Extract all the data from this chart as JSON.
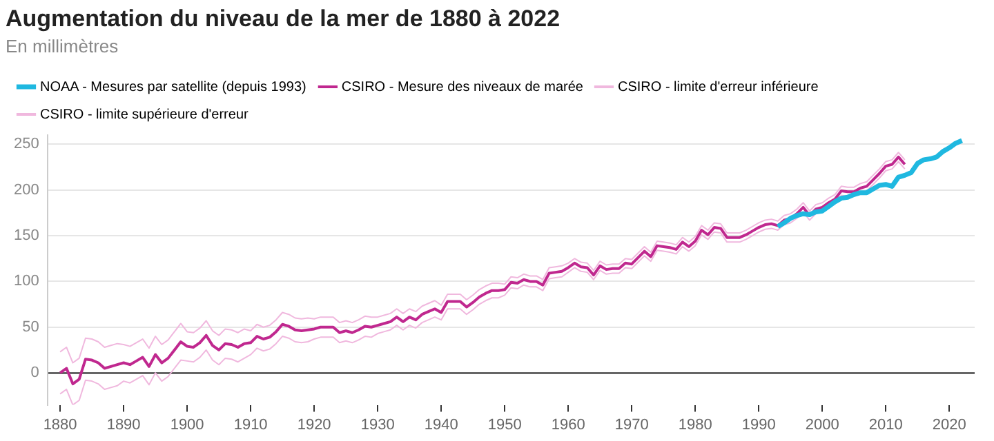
{
  "chart_data": {
    "type": "line",
    "title": "Augmentation du niveau de la mer de 1880 à 2022",
    "subtitle": "En millimètres",
    "x": [
      1880,
      1881,
      1882,
      1883,
      1884,
      1885,
      1886,
      1887,
      1888,
      1889,
      1890,
      1891,
      1892,
      1893,
      1894,
      1895,
      1896,
      1897,
      1898,
      1899,
      1900,
      1901,
      1902,
      1903,
      1904,
      1905,
      1906,
      1907,
      1908,
      1909,
      1910,
      1911,
      1912,
      1913,
      1914,
      1915,
      1916,
      1917,
      1918,
      1919,
      1920,
      1921,
      1922,
      1923,
      1924,
      1925,
      1926,
      1927,
      1928,
      1929,
      1930,
      1931,
      1932,
      1933,
      1934,
      1935,
      1936,
      1937,
      1938,
      1939,
      1940,
      1941,
      1942,
      1943,
      1944,
      1945,
      1946,
      1947,
      1948,
      1949,
      1950,
      1951,
      1952,
      1953,
      1954,
      1955,
      1956,
      1957,
      1958,
      1959,
      1960,
      1961,
      1962,
      1963,
      1964,
      1965,
      1966,
      1967,
      1968,
      1969,
      1970,
      1971,
      1972,
      1973,
      1974,
      1975,
      1976,
      1977,
      1978,
      1979,
      1980,
      1981,
      1982,
      1983,
      1984,
      1985,
      1986,
      1987,
      1988,
      1989,
      1990,
      1991,
      1992,
      1993,
      1994,
      1995,
      1996,
      1997,
      1998,
      1999,
      2000,
      2001,
      2002,
      2003,
      2004,
      2005,
      2006,
      2007,
      2008,
      2009,
      2010,
      2011,
      2012,
      2013
    ],
    "series": [
      {
        "name": "NOAA - Mesures par satellite (depuis 1993)",
        "color": "#1fb8e0",
        "x": [
          1993,
          1994,
          1995,
          1996,
          1997,
          1998,
          1999,
          2000,
          2001,
          2002,
          2003,
          2004,
          2005,
          2006,
          2007,
          2008,
          2009,
          2010,
          2011,
          2012,
          2013,
          2014,
          2015,
          2016,
          2017,
          2018,
          2019,
          2020,
          2021,
          2022
        ],
        "values": [
          160,
          164,
          169,
          172,
          174,
          173,
          176,
          177,
          182,
          187,
          191,
          192,
          195,
          197,
          197,
          201,
          205,
          206,
          204,
          214,
          216,
          219,
          229,
          233,
          234,
          236,
          242,
          246,
          251,
          254
        ]
      },
      {
        "name": "CSIRO - Mesure des niveaux de marée",
        "color": "#c0288f",
        "values": [
          0,
          5,
          -12,
          -7,
          15,
          14,
          11,
          5,
          7,
          9,
          11,
          9,
          13,
          17,
          7,
          20,
          11,
          16,
          25,
          34,
          29,
          28,
          33,
          41,
          30,
          25,
          32,
          31,
          28,
          32,
          33,
          40,
          37,
          39,
          45,
          53,
          51,
          47,
          46,
          47,
          48,
          50,
          50,
          50,
          44,
          46,
          44,
          47,
          51,
          50,
          52,
          54,
          56,
          61,
          56,
          61,
          58,
          64,
          67,
          70,
          66,
          78,
          78,
          78,
          72,
          77,
          83,
          87,
          90,
          90,
          91,
          99,
          98,
          102,
          100,
          100,
          96,
          109,
          110,
          111,
          115,
          120,
          116,
          115,
          107,
          117,
          113,
          114,
          114,
          120,
          119,
          126,
          133,
          127,
          139,
          138,
          137,
          135,
          143,
          138,
          144,
          156,
          151,
          159,
          158,
          148,
          148,
          148,
          151,
          155,
          159,
          162,
          163,
          161,
          167,
          169,
          174,
          181,
          172,
          179,
          181,
          186,
          190,
          199,
          198,
          198,
          202,
          204,
          211,
          218,
          226,
          228,
          236,
          228
        ]
      },
      {
        "name": "CSIRO - limite d'erreur inférieure",
        "color": "#f0b8de",
        "values": [
          -23,
          -18,
          -35,
          -30,
          -8,
          -9,
          -12,
          -18,
          -16,
          -14,
          -9,
          -11,
          -7,
          -3,
          -13,
          0,
          -9,
          -4,
          5,
          14,
          13,
          12,
          17,
          25,
          14,
          9,
          16,
          15,
          12,
          16,
          20,
          27,
          24,
          26,
          32,
          40,
          38,
          34,
          33,
          34,
          37,
          39,
          39,
          39,
          33,
          35,
          33,
          36,
          40,
          39,
          43,
          45,
          47,
          52,
          47,
          52,
          49,
          55,
          58,
          61,
          58,
          70,
          70,
          70,
          64,
          69,
          75,
          79,
          82,
          82,
          85,
          93,
          92,
          96,
          94,
          94,
          90,
          103,
          104,
          105,
          110,
          115,
          111,
          110,
          102,
          112,
          108,
          109,
          109,
          115,
          114,
          121,
          128,
          122,
          134,
          133,
          132,
          130,
          138,
          133,
          139,
          151,
          146,
          154,
          153,
          143,
          143,
          143,
          146,
          150,
          154,
          157,
          158,
          156,
          162,
          164,
          169,
          176,
          167,
          174,
          176,
          181,
          185,
          194,
          193,
          193,
          197,
          199,
          206,
          213,
          221,
          223,
          231,
          223
        ]
      },
      {
        "name": "CSIRO - limite supérieure d'erreur",
        "color": "#f0b8de",
        "values": [
          23,
          28,
          11,
          16,
          38,
          37,
          34,
          28,
          30,
          32,
          31,
          29,
          33,
          37,
          27,
          40,
          31,
          36,
          45,
          54,
          45,
          44,
          49,
          57,
          46,
          41,
          48,
          47,
          44,
          48,
          46,
          53,
          50,
          52,
          58,
          66,
          64,
          60,
          59,
          60,
          59,
          61,
          61,
          61,
          55,
          57,
          55,
          58,
          62,
          61,
          61,
          63,
          65,
          70,
          65,
          70,
          67,
          73,
          76,
          79,
          74,
          86,
          86,
          86,
          80,
          85,
          91,
          95,
          98,
          98,
          97,
          105,
          104,
          108,
          106,
          106,
          102,
          115,
          116,
          117,
          120,
          125,
          121,
          120,
          112,
          122,
          118,
          119,
          119,
          125,
          124,
          131,
          138,
          132,
          144,
          143,
          142,
          140,
          148,
          143,
          149,
          161,
          156,
          164,
          163,
          153,
          153,
          153,
          156,
          160,
          164,
          167,
          168,
          166,
          172,
          174,
          179,
          186,
          177,
          184,
          186,
          191,
          195,
          204,
          203,
          203,
          207,
          209,
          216,
          223,
          231,
          233,
          241,
          233
        ]
      }
    ],
    "xlim": [
      1878,
      2024
    ],
    "xticks": [
      1880,
      1890,
      1900,
      1910,
      1920,
      1930,
      1940,
      1950,
      1960,
      1970,
      1980,
      1990,
      2000,
      2010,
      2020
    ],
    "ylim": [
      -35,
      260
    ],
    "yticks": [
      0,
      50,
      100,
      150,
      200,
      250
    ],
    "grid": "y",
    "legend": "top left",
    "marker": "none",
    "line_style": "solid"
  }
}
